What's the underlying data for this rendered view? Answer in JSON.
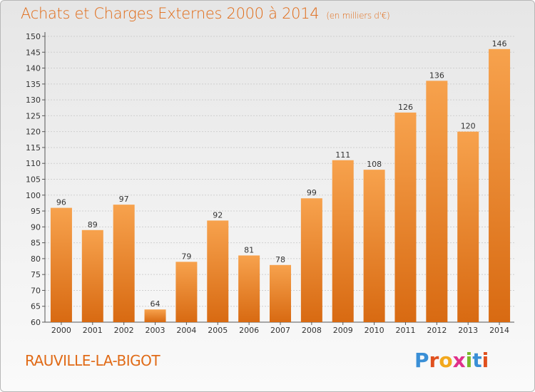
{
  "chart_data": {
    "type": "bar",
    "title": "Achats et Charges Externes 2000 à 2014",
    "subtitle": "(en milliers d'€)",
    "categories": [
      "2000",
      "2001",
      "2002",
      "2003",
      "2004",
      "2005",
      "2006",
      "2007",
      "2008",
      "2009",
      "2010",
      "2011",
      "2012",
      "2013",
      "2014"
    ],
    "values": [
      96,
      89,
      97,
      64,
      79,
      92,
      81,
      78,
      99,
      111,
      108,
      126,
      136,
      120,
      146
    ],
    "ylim": [
      60,
      150
    ],
    "ytick_step": 5,
    "grid": true,
    "bar_color": "#f0923a",
    "title_color": "#e06a16"
  },
  "footer": {
    "place": "RAUVILLE-LA-BIGOT",
    "logo": {
      "letters": [
        {
          "ch": "P",
          "color": "#3a8fd6"
        },
        {
          "ch": "r",
          "color": "#e0501e"
        },
        {
          "ch": "o",
          "color": "#f2a81d"
        },
        {
          "ch": "x",
          "color": "#e0308a"
        },
        {
          "ch": "i",
          "color": "#7ab829"
        },
        {
          "ch": "t",
          "color": "#3a8fd6"
        },
        {
          "ch": "i",
          "color": "#e0501e"
        }
      ]
    }
  }
}
